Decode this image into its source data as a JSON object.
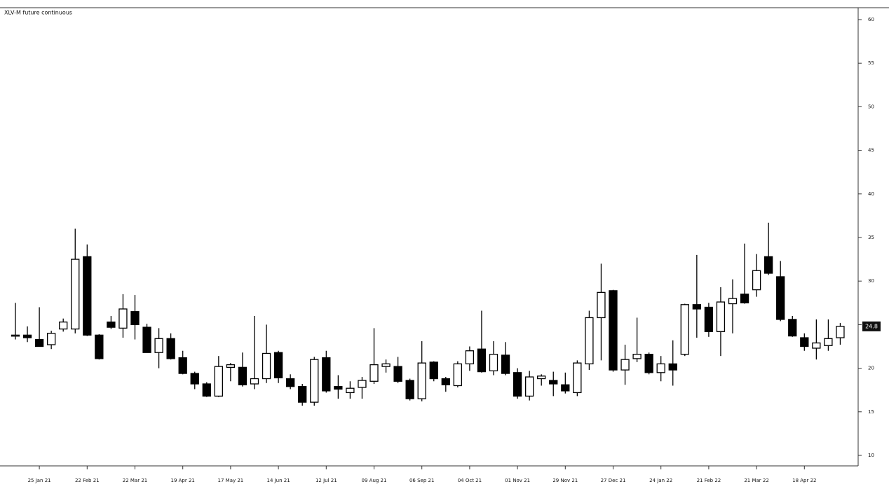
{
  "chart_data": {
    "type": "candlestick",
    "title": "XLV-M future continuous",
    "categories": [
      null,
      null,
      "25 Jan 21",
      null,
      null,
      null,
      "22 Feb 21",
      null,
      null,
      null,
      "22 Mar 21",
      null,
      null,
      null,
      "19 Apr 21",
      null,
      null,
      null,
      "17 May 21",
      null,
      null,
      null,
      "14 Jun 21",
      null,
      null,
      null,
      "12 Jul 21",
      null,
      null,
      null,
      "09 Aug 21",
      null,
      null,
      null,
      "06 Sep 21",
      null,
      null,
      null,
      "04 Oct 21",
      null,
      null,
      null,
      "01 Nov 21",
      null,
      null,
      null,
      "29 Nov 21",
      null,
      null,
      null,
      "27 Dec 21",
      null,
      null,
      null,
      "24 Jan 22",
      null,
      null,
      null,
      "21 Feb 22",
      null,
      null,
      null,
      "21 Mar 22",
      null,
      null,
      null,
      "18 Apr 22",
      null,
      null,
      null
    ],
    "open": [
      23.7,
      23.8,
      23.3,
      22.7,
      24.5,
      24.5,
      32.8,
      23.8,
      25.3,
      24.6,
      26.5,
      24.7,
      21.8,
      23.4,
      21.2,
      19.4,
      18.2,
      16.8,
      20.1,
      20.1,
      18.2,
      18.8,
      21.8,
      18.8,
      17.9,
      16.1,
      21.2,
      17.9,
      17.2,
      17.8,
      18.5,
      20.2,
      20.2,
      18.6,
      16.5,
      20.7,
      18.8,
      18.0,
      20.5,
      22.2,
      19.7,
      21.5,
      19.5,
      16.8,
      18.8,
      18.6,
      18.1,
      17.2,
      20.5,
      25.8,
      28.9,
      19.8,
      21.1,
      21.6,
      19.5,
      20.5,
      21.6,
      27.3,
      27.0,
      24.2,
      27.4,
      28.5,
      29.0,
      32.8,
      30.5,
      25.6,
      23.5,
      22.3,
      22.6,
      23.5
    ],
    "high": [
      27.5,
      24.8,
      27.0,
      24.3,
      25.7,
      36.0,
      34.2,
      23.9,
      26.0,
      28.5,
      28.4,
      25.1,
      24.6,
      24.0,
      22.0,
      19.6,
      18.4,
      21.4,
      20.6,
      21.8,
      26.0,
      25.0,
      22.0,
      19.3,
      18.2,
      21.3,
      22.0,
      19.2,
      18.5,
      19.0,
      24.6,
      21.0,
      21.3,
      18.8,
      23.1,
      20.8,
      19.0,
      20.8,
      22.5,
      26.6,
      23.1,
      23.0,
      20.0,
      19.7,
      19.3,
      19.6,
      19.5,
      20.9,
      26.6,
      32.0,
      29.0,
      22.7,
      25.8,
      21.8,
      21.4,
      23.2,
      27.4,
      33.0,
      27.5,
      29.3,
      30.2,
      34.3,
      33.1,
      36.7,
      32.3,
      26.0,
      24.0,
      25.6,
      25.6,
      25.2
    ],
    "low": [
      23.3,
      23.0,
      22.5,
      22.2,
      24.2,
      24.0,
      23.7,
      21.0,
      24.5,
      23.5,
      23.3,
      21.8,
      20.0,
      21.0,
      19.3,
      17.6,
      16.7,
      16.7,
      18.5,
      17.9,
      17.6,
      18.3,
      18.3,
      17.6,
      15.7,
      15.7,
      17.2,
      16.5,
      16.5,
      16.5,
      18.2,
      19.5,
      18.3,
      16.3,
      16.2,
      18.5,
      17.3,
      17.8,
      19.7,
      19.5,
      19.2,
      19.2,
      16.5,
      16.3,
      18.0,
      16.8,
      17.1,
      16.8,
      19.8,
      20.9,
      19.6,
      18.1,
      20.7,
      19.3,
      18.5,
      18.0,
      21.4,
      23.5,
      23.6,
      21.4,
      24.0,
      27.4,
      28.2,
      30.7,
      25.4,
      23.6,
      22.0,
      21.0,
      22.0,
      22.7
    ],
    "close": [
      23.8,
      23.5,
      22.5,
      24.0,
      25.3,
      32.5,
      23.8,
      21.1,
      24.7,
      26.8,
      25.0,
      21.8,
      23.4,
      21.1,
      19.4,
      18.2,
      16.8,
      20.2,
      20.4,
      18.1,
      18.8,
      21.7,
      18.9,
      17.9,
      16.1,
      21.0,
      17.4,
      17.6,
      17.7,
      18.6,
      20.4,
      20.5,
      18.5,
      16.5,
      20.6,
      18.8,
      18.1,
      20.5,
      22.0,
      19.6,
      21.6,
      19.4,
      16.8,
      19.0,
      19.1,
      18.2,
      17.4,
      20.6,
      25.8,
      28.7,
      19.8,
      21.0,
      21.6,
      19.5,
      20.5,
      19.8,
      27.3,
      26.8,
      24.2,
      27.6,
      28.0,
      27.5,
      31.2,
      30.9,
      25.6,
      23.7,
      22.5,
      22.9,
      23.4,
      24.8
    ],
    "up_color": "#ffffff",
    "down_color": "#000000",
    "ylim": [
      10,
      60
    ],
    "yticks": [
      10,
      15,
      20,
      25,
      30,
      35,
      40,
      45,
      50,
      55,
      60
    ]
  }
}
